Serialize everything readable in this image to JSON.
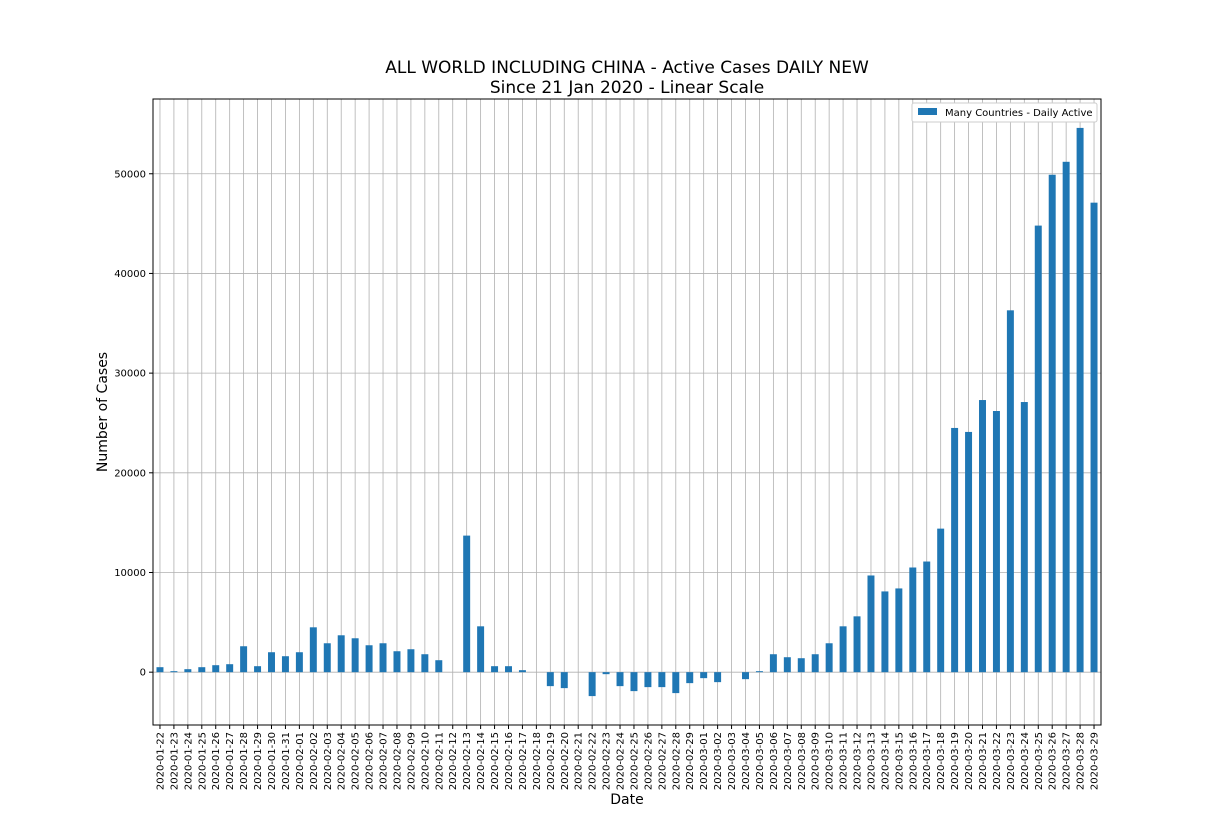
{
  "chart_data": {
    "type": "bar",
    "title": "ALL WORLD INCLUDING CHINA - Active Cases DAILY NEW",
    "subtitle": "Since 21 Jan 2020 - Linear Scale",
    "xlabel": "Date",
    "ylabel": "Number of Cases",
    "ylim": [
      -5300,
      57500
    ],
    "yticks": [
      0,
      10000,
      20000,
      30000,
      40000,
      50000
    ],
    "grid": true,
    "legend_placement": "top-right",
    "series": [
      {
        "name": "Many Countries - Daily Active",
        "color": "#1f77b4",
        "values": [
          500,
          100,
          300,
          500,
          700,
          800,
          2600,
          600,
          2000,
          1600,
          2000,
          4500,
          2900,
          3700,
          3400,
          2700,
          2900,
          2100,
          2300,
          1800,
          1200,
          0,
          13700,
          4600,
          600,
          600,
          200,
          0,
          -1400,
          -1600,
          0,
          -2400,
          -200,
          -1400,
          -1900,
          -1500,
          -1500,
          -2100,
          -1100,
          -600,
          -1000,
          0,
          -700,
          100,
          1800,
          1500,
          1400,
          1800,
          2900,
          4600,
          5600,
          9700,
          8100,
          8400,
          10500,
          11100,
          14400,
          24500,
          24100,
          27300,
          26200,
          36300,
          27100,
          44800,
          49900,
          51200,
          54600,
          47100
        ]
      }
    ],
    "categories": [
      "2020-01-22",
      "2020-01-23",
      "2020-01-24",
      "2020-01-25",
      "2020-01-26",
      "2020-01-27",
      "2020-01-28",
      "2020-01-29",
      "2020-01-30",
      "2020-01-31",
      "2020-02-01",
      "2020-02-02",
      "2020-02-03",
      "2020-02-04",
      "2020-02-05",
      "2020-02-06",
      "2020-02-07",
      "2020-02-08",
      "2020-02-09",
      "2020-02-10",
      "2020-02-11",
      "2020-02-12",
      "2020-02-13",
      "2020-02-14",
      "2020-02-15",
      "2020-02-16",
      "2020-02-17",
      "2020-02-18",
      "2020-02-19",
      "2020-02-20",
      "2020-02-21",
      "2020-02-22",
      "2020-02-23",
      "2020-02-24",
      "2020-02-25",
      "2020-02-26",
      "2020-02-27",
      "2020-02-28",
      "2020-02-29",
      "2020-03-01",
      "2020-03-02",
      "2020-03-03",
      "2020-03-04",
      "2020-03-05",
      "2020-03-06",
      "2020-03-07",
      "2020-03-08",
      "2020-03-09",
      "2020-03-10",
      "2020-03-11",
      "2020-03-12",
      "2020-03-13",
      "2020-03-14",
      "2020-03-15",
      "2020-03-16",
      "2020-03-17",
      "2020-03-18",
      "2020-03-19",
      "2020-03-20",
      "2020-03-21",
      "2020-03-22",
      "2020-03-23",
      "2020-03-24",
      "2020-03-25",
      "2020-03-26",
      "2020-03-27",
      "2020-03-28",
      "2020-03-29"
    ]
  }
}
